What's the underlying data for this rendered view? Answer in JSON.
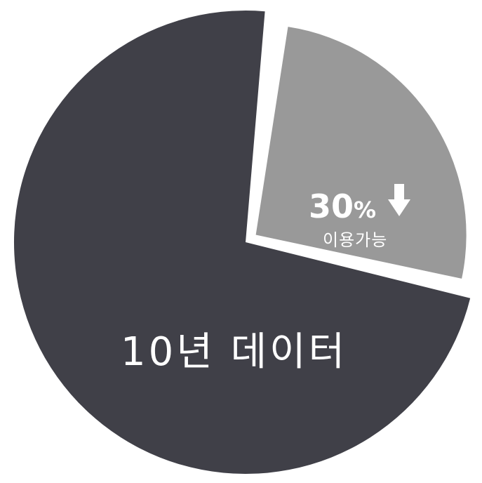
{
  "chart_data": {
    "type": "pie",
    "categories": [
      "10년 데이터",
      "이용가능"
    ],
    "values": [
      70,
      30
    ],
    "colors": [
      "#404048",
      "#999999"
    ],
    "exploded_index": 1,
    "title": "",
    "slice_labels": {
      "main": "10년 데이터",
      "highlight_value": "30",
      "highlight_unit": "%",
      "highlight_caption": "이용가능",
      "highlight_icon": "down-arrow-icon"
    }
  }
}
